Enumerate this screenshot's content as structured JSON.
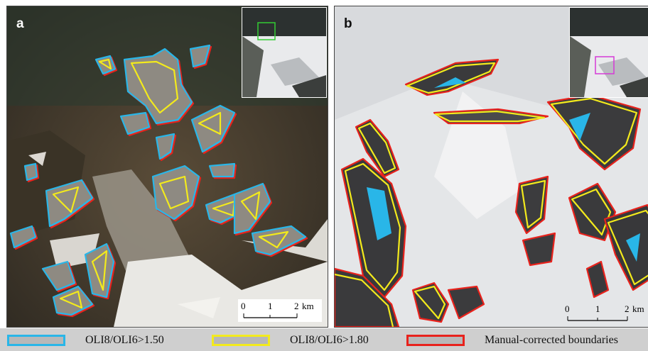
{
  "panels": [
    {
      "label": "a",
      "scale": {
        "ticks": [
          "0",
          "1",
          "2"
        ],
        "unit": "km"
      }
    },
    {
      "label": "b",
      "scale": {
        "ticks": [
          "0",
          "1",
          "2"
        ],
        "unit": "km"
      }
    }
  ],
  "legend": [
    {
      "label": "OLI8/OLI6>1.50",
      "color": "#29b6e8"
    },
    {
      "label": "OLI8/OLI6>1.80",
      "color": "#f3ea1c"
    },
    {
      "label": "Manual-corrected boundaries",
      "color": "#e8221c"
    }
  ],
  "colors": {
    "blue": "#29b6e8",
    "yellow": "#f3ea1c",
    "red": "#e8221c",
    "snow": "#e6e8ea",
    "rock": "#4a3f30"
  }
}
